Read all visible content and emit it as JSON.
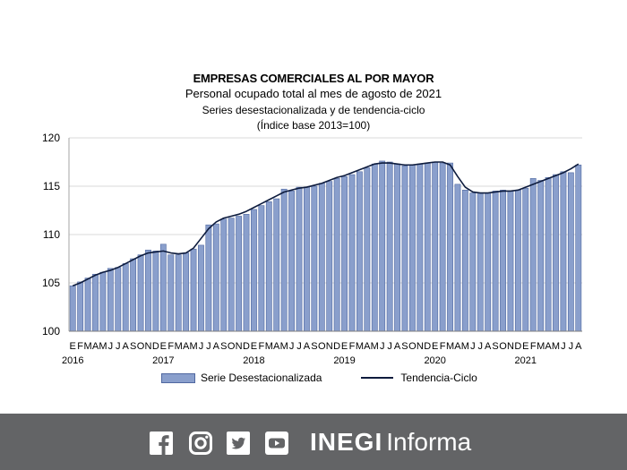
{
  "chart_data": {
    "type": "bar",
    "title": "EMPRESAS COMERCIALES AL POR MAYOR",
    "subtitle": "Personal ocupado total al mes de agosto de 2021",
    "subtitle2": "Series desestacionalizada y de tendencia-ciclo",
    "subtitle3": "(Índice base 2013=100)",
    "ylim": [
      100,
      120
    ],
    "yticks": [
      "100",
      "105",
      "110",
      "115",
      "120"
    ],
    "month_labels": [
      "E",
      "F",
      "M",
      "A",
      "M",
      "J",
      "J",
      "A",
      "S",
      "O",
      "N",
      "D",
      "E",
      "F",
      "M",
      "A",
      "M",
      "J",
      "J",
      "A",
      "S",
      "O",
      "N",
      "D",
      "E",
      "F",
      "M",
      "A",
      "M",
      "J",
      "J",
      "A",
      "S",
      "O",
      "N",
      "D",
      "E",
      "F",
      "M",
      "A",
      "M",
      "J",
      "J",
      "A",
      "S",
      "O",
      "N",
      "D",
      "E",
      "F",
      "M",
      "A",
      "M",
      "J",
      "J",
      "A",
      "S",
      "O",
      "N",
      "D",
      "E",
      "F",
      "M",
      "A",
      "M",
      "J",
      "J",
      "A"
    ],
    "year_labels": [
      {
        "label": "2016",
        "index": 0
      },
      {
        "label": "2017",
        "index": 12
      },
      {
        "label": "2018",
        "index": 24
      },
      {
        "label": "2019",
        "index": 36
      },
      {
        "label": "2020",
        "index": 48
      },
      {
        "label": "2021",
        "index": 60
      }
    ],
    "series": [
      {
        "name": "Serie Desestacionalizada",
        "kind": "bar",
        "values": [
          104.7,
          105.1,
          105.5,
          105.9,
          106.1,
          106.5,
          106.6,
          107.0,
          107.5,
          107.9,
          108.4,
          108.3,
          109.0,
          107.9,
          107.9,
          108.1,
          108.5,
          108.9,
          111.0,
          111.1,
          111.6,
          111.7,
          111.9,
          112.1,
          112.6,
          113.0,
          113.4,
          113.7,
          114.7,
          114.5,
          114.9,
          114.9,
          115.0,
          115.3,
          115.5,
          115.8,
          116.0,
          116.2,
          116.5,
          116.9,
          117.3,
          117.6,
          117.5,
          117.3,
          117.1,
          117.2,
          117.3,
          117.4,
          117.5,
          117.4,
          117.4,
          115.2,
          114.6,
          114.3,
          114.3,
          114.3,
          114.5,
          114.6,
          114.5,
          114.6,
          114.8,
          115.8,
          115.6,
          115.9,
          116.2,
          116.5,
          116.4,
          117.2
        ]
      },
      {
        "name": "Tendencia-Ciclo",
        "kind": "line",
        "values": [
          104.7,
          105.0,
          105.4,
          105.8,
          106.1,
          106.3,
          106.6,
          107.0,
          107.4,
          107.8,
          108.1,
          108.2,
          108.3,
          108.1,
          108.0,
          108.1,
          108.6,
          109.6,
          110.6,
          111.3,
          111.7,
          111.9,
          112.1,
          112.4,
          112.8,
          113.2,
          113.6,
          114.0,
          114.4,
          114.6,
          114.8,
          114.9,
          115.1,
          115.3,
          115.6,
          115.9,
          116.1,
          116.4,
          116.7,
          117.0,
          117.3,
          117.4,
          117.4,
          117.3,
          117.2,
          117.2,
          117.3,
          117.4,
          117.5,
          117.5,
          117.2,
          116.0,
          114.9,
          114.4,
          114.3,
          114.3,
          114.4,
          114.5,
          114.5,
          114.6,
          114.9,
          115.2,
          115.5,
          115.8,
          116.1,
          116.4,
          116.8,
          117.3
        ]
      }
    ],
    "legend": [
      "Serie Desestacionalizada",
      "Tendencia-Ciclo"
    ],
    "colors": {
      "bar_fill": "#8a9fcc",
      "bar_stroke": "#5068a0",
      "line": "#0d1b3d",
      "grid": "#d9d9d9"
    }
  },
  "footer": {
    "icons": [
      "facebook-icon",
      "instagram-icon",
      "twitter-icon",
      "youtube-icon"
    ],
    "brand_bold": "INEGI",
    "brand_light": "Informa",
    "background": "#636466"
  }
}
